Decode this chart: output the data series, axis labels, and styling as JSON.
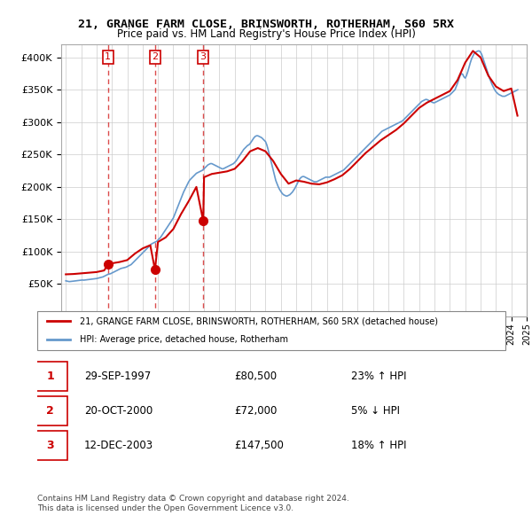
{
  "title": "21, GRANGE FARM CLOSE, BRINSWORTH, ROTHERHAM, S60 5RX",
  "subtitle": "Price paid vs. HM Land Registry's House Price Index (HPI)",
  "property_label": "21, GRANGE FARM CLOSE, BRINSWORTH, ROTHERHAM, S60 5RX (detached house)",
  "hpi_label": "HPI: Average price, detached house, Rotherham",
  "footnote1": "Contains HM Land Registry data © Crown copyright and database right 2024.",
  "footnote2": "This data is licensed under the Open Government Licence v3.0.",
  "sales": [
    {
      "num": 1,
      "date": "29-SEP-1997",
      "price": 80500,
      "pct": "23%",
      "dir": "↑"
    },
    {
      "num": 2,
      "date": "20-OCT-2000",
      "price": 72000,
      "pct": "5%",
      "dir": "↓"
    },
    {
      "num": 3,
      "date": "12-DEC-2003",
      "price": 147500,
      "pct": "18%",
      "dir": "↑"
    }
  ],
  "sale_dates_decimal": [
    1997.747,
    2000.804,
    2003.945
  ],
  "red_color": "#cc0000",
  "blue_color": "#6699cc",
  "background": "#ffffff",
  "grid_color": "#cccccc",
  "ylim": [
    0,
    420000
  ],
  "yticks": [
    0,
    50000,
    100000,
    150000,
    200000,
    250000,
    300000,
    350000,
    400000
  ],
  "hpi_data": {
    "dates": [
      1995.0,
      1995.083,
      1995.167,
      1995.25,
      1995.333,
      1995.417,
      1995.5,
      1995.583,
      1995.667,
      1995.75,
      1995.833,
      1995.917,
      1996.0,
      1996.083,
      1996.167,
      1996.25,
      1996.333,
      1996.417,
      1996.5,
      1996.583,
      1996.667,
      1996.75,
      1996.833,
      1996.917,
      1997.0,
      1997.083,
      1997.167,
      1997.25,
      1997.333,
      1997.417,
      1997.5,
      1997.583,
      1997.667,
      1997.75,
      1997.833,
      1997.917,
      1998.0,
      1998.083,
      1998.167,
      1998.25,
      1998.333,
      1998.417,
      1998.5,
      1998.583,
      1998.667,
      1998.75,
      1998.833,
      1998.917,
      1999.0,
      1999.083,
      1999.167,
      1999.25,
      1999.333,
      1999.417,
      1999.5,
      1999.583,
      1999.667,
      1999.75,
      1999.833,
      1999.917,
      2000.0,
      2000.083,
      2000.167,
      2000.25,
      2000.333,
      2000.417,
      2000.5,
      2000.583,
      2000.667,
      2000.75,
      2000.833,
      2000.917,
      2001.0,
      2001.083,
      2001.167,
      2001.25,
      2001.333,
      2001.417,
      2001.5,
      2001.583,
      2001.667,
      2001.75,
      2001.833,
      2001.917,
      2002.0,
      2002.083,
      2002.167,
      2002.25,
      2002.333,
      2002.417,
      2002.5,
      2002.583,
      2002.667,
      2002.75,
      2002.833,
      2002.917,
      2003.0,
      2003.083,
      2003.167,
      2003.25,
      2003.333,
      2003.417,
      2003.5,
      2003.583,
      2003.667,
      2003.75,
      2003.833,
      2003.917,
      2004.0,
      2004.083,
      2004.167,
      2004.25,
      2004.333,
      2004.417,
      2004.5,
      2004.583,
      2004.667,
      2004.75,
      2004.833,
      2004.917,
      2005.0,
      2005.083,
      2005.167,
      2005.25,
      2005.333,
      2005.417,
      2005.5,
      2005.583,
      2005.667,
      2005.75,
      2005.833,
      2005.917,
      2006.0,
      2006.083,
      2006.167,
      2006.25,
      2006.333,
      2006.417,
      2006.5,
      2006.583,
      2006.667,
      2006.75,
      2006.833,
      2006.917,
      2007.0,
      2007.083,
      2007.167,
      2007.25,
      2007.333,
      2007.417,
      2007.5,
      2007.583,
      2007.667,
      2007.75,
      2007.833,
      2007.917,
      2008.0,
      2008.083,
      2008.167,
      2008.25,
      2008.333,
      2008.417,
      2008.5,
      2008.583,
      2008.667,
      2008.75,
      2008.833,
      2008.917,
      2009.0,
      2009.083,
      2009.167,
      2009.25,
      2009.333,
      2009.417,
      2009.5,
      2009.583,
      2009.667,
      2009.75,
      2009.833,
      2009.917,
      2010.0,
      2010.083,
      2010.167,
      2010.25,
      2010.333,
      2010.417,
      2010.5,
      2010.583,
      2010.667,
      2010.75,
      2010.833,
      2010.917,
      2011.0,
      2011.083,
      2011.167,
      2011.25,
      2011.333,
      2011.417,
      2011.5,
      2011.583,
      2011.667,
      2011.75,
      2011.833,
      2011.917,
      2012.0,
      2012.083,
      2012.167,
      2012.25,
      2012.333,
      2012.417,
      2012.5,
      2012.583,
      2012.667,
      2012.75,
      2012.833,
      2012.917,
      2013.0,
      2013.083,
      2013.167,
      2013.25,
      2013.333,
      2013.417,
      2013.5,
      2013.583,
      2013.667,
      2013.75,
      2013.833,
      2013.917,
      2014.0,
      2014.083,
      2014.167,
      2014.25,
      2014.333,
      2014.417,
      2014.5,
      2014.583,
      2014.667,
      2014.75,
      2014.833,
      2014.917,
      2015.0,
      2015.083,
      2015.167,
      2015.25,
      2015.333,
      2015.417,
      2015.5,
      2015.583,
      2015.667,
      2015.75,
      2015.833,
      2015.917,
      2016.0,
      2016.083,
      2016.167,
      2016.25,
      2016.333,
      2016.417,
      2016.5,
      2016.583,
      2016.667,
      2016.75,
      2016.833,
      2016.917,
      2017.0,
      2017.083,
      2017.167,
      2017.25,
      2017.333,
      2017.417,
      2017.5,
      2017.583,
      2017.667,
      2017.75,
      2017.833,
      2017.917,
      2018.0,
      2018.083,
      2018.167,
      2018.25,
      2018.333,
      2018.417,
      2018.5,
      2018.583,
      2018.667,
      2018.75,
      2018.833,
      2018.917,
      2019.0,
      2019.083,
      2019.167,
      2019.25,
      2019.333,
      2019.417,
      2019.5,
      2019.583,
      2019.667,
      2019.75,
      2019.833,
      2019.917,
      2020.0,
      2020.083,
      2020.167,
      2020.25,
      2020.333,
      2020.417,
      2020.5,
      2020.583,
      2020.667,
      2020.75,
      2020.833,
      2020.917,
      2021.0,
      2021.083,
      2021.167,
      2021.25,
      2021.333,
      2021.417,
      2021.5,
      2021.583,
      2021.667,
      2021.75,
      2021.833,
      2021.917,
      2022.0,
      2022.083,
      2022.167,
      2022.25,
      2022.333,
      2022.417,
      2022.5,
      2022.583,
      2022.667,
      2022.75,
      2022.833,
      2022.917,
      2023.0,
      2023.083,
      2023.167,
      2023.25,
      2023.333,
      2023.417,
      2023.5,
      2023.583,
      2023.667,
      2023.75,
      2023.833,
      2023.917,
      2024.0,
      2024.083,
      2024.167,
      2024.25,
      2024.333,
      2024.417
    ],
    "values": [
      55000,
      54500,
      54000,
      53800,
      54000,
      54200,
      54500,
      54800,
      55000,
      55200,
      55500,
      55800,
      56000,
      56200,
      56000,
      56200,
      56500,
      56800,
      57000,
      57200,
      57500,
      57800,
      58000,
      58200,
      58500,
      59000,
      59500,
      60000,
      60500,
      61000,
      62000,
      63000,
      64000,
      65000,
      65500,
      66000,
      67000,
      68000,
      69000,
      70000,
      71000,
      72000,
      73000,
      74000,
      74500,
      75000,
      75500,
      76000,
      77000,
      78000,
      79000,
      80000,
      82000,
      84000,
      86000,
      88000,
      90000,
      92000,
      94000,
      96000,
      98000,
      100000,
      102000,
      104000,
      106000,
      108000,
      110000,
      112000,
      113000,
      114000,
      115000,
      116000,
      118000,
      120000,
      122000,
      125000,
      128000,
      131000,
      134000,
      137000,
      140000,
      143000,
      146000,
      149000,
      152000,
      157000,
      162000,
      167000,
      172000,
      177000,
      182000,
      187000,
      192000,
      196000,
      200000,
      204000,
      208000,
      211000,
      213000,
      215000,
      217000,
      219000,
      221000,
      222000,
      223000,
      224000,
      225000,
      226000,
      228000,
      230000,
      232000,
      234000,
      235000,
      236000,
      236000,
      235000,
      234000,
      233000,
      232000,
      231000,
      230000,
      229000,
      228000,
      228000,
      229000,
      230000,
      231000,
      232000,
      233000,
      234000,
      235000,
      236000,
      238000,
      240000,
      243000,
      246000,
      249000,
      252000,
      255000,
      258000,
      260000,
      262000,
      264000,
      265000,
      267000,
      270000,
      273000,
      276000,
      278000,
      279000,
      279000,
      278000,
      277000,
      276000,
      274000,
      272000,
      270000,
      265000,
      258000,
      250000,
      242000,
      234000,
      226000,
      218000,
      210000,
      205000,
      200000,
      196000,
      193000,
      190000,
      188000,
      187000,
      186000,
      186000,
      187000,
      188000,
      190000,
      192000,
      195000,
      198000,
      202000,
      206000,
      210000,
      213000,
      215000,
      216000,
      216000,
      215000,
      214000,
      213000,
      212000,
      211000,
      210000,
      209000,
      208000,
      208000,
      208000,
      209000,
      210000,
      211000,
      212000,
      213000,
      214000,
      215000,
      215000,
      215000,
      215000,
      216000,
      217000,
      218000,
      219000,
      220000,
      221000,
      222000,
      223000,
      224000,
      225000,
      226000,
      228000,
      230000,
      232000,
      234000,
      236000,
      238000,
      240000,
      242000,
      244000,
      246000,
      248000,
      250000,
      252000,
      254000,
      256000,
      258000,
      260000,
      262000,
      264000,
      266000,
      268000,
      270000,
      272000,
      274000,
      276000,
      278000,
      280000,
      282000,
      284000,
      286000,
      287000,
      288000,
      289000,
      290000,
      291000,
      292000,
      293000,
      294000,
      295000,
      296000,
      297000,
      298000,
      299000,
      300000,
      301000,
      302000,
      304000,
      306000,
      308000,
      310000,
      312000,
      314000,
      316000,
      318000,
      320000,
      322000,
      324000,
      326000,
      328000,
      330000,
      332000,
      333000,
      334000,
      335000,
      335000,
      334000,
      333000,
      332000,
      331000,
      330000,
      330000,
      331000,
      332000,
      333000,
      334000,
      335000,
      336000,
      337000,
      338000,
      339000,
      340000,
      341000,
      342000,
      344000,
      346000,
      348000,
      350000,
      355000,
      360000,
      366000,
      372000,
      375000,
      374000,
      370000,
      368000,
      372000,
      378000,
      385000,
      392000,
      398000,
      402000,
      406000,
      408000,
      409000,
      410000,
      410000,
      408000,
      404000,
      398000,
      392000,
      386000,
      380000,
      374000,
      368000,
      363000,
      358000,
      354000,
      350000,
      347000,
      345000,
      343000,
      342000,
      341000,
      340000,
      340000,
      340000,
      341000,
      342000,
      343000,
      344000,
      345000,
      346000,
      347000,
      348000,
      349000,
      350000
    ]
  },
  "property_data": {
    "dates": [
      1995.0,
      1995.5,
      1996.0,
      1996.5,
      1997.0,
      1997.5,
      1997.747,
      1998.0,
      1998.5,
      1999.0,
      1999.5,
      2000.0,
      2000.5,
      2000.804,
      2001.0,
      2001.5,
      2002.0,
      2002.5,
      2003.0,
      2003.5,
      2003.945,
      2004.0,
      2004.5,
      2005.0,
      2005.5,
      2006.0,
      2006.5,
      2007.0,
      2007.5,
      2008.0,
      2008.5,
      2009.0,
      2009.5,
      2010.0,
      2010.5,
      2011.0,
      2011.5,
      2012.0,
      2012.5,
      2013.0,
      2013.5,
      2014.0,
      2014.5,
      2015.0,
      2015.5,
      2016.0,
      2016.5,
      2017.0,
      2017.5,
      2018.0,
      2018.5,
      2019.0,
      2019.5,
      2020.0,
      2020.5,
      2021.0,
      2021.5,
      2022.0,
      2022.5,
      2023.0,
      2023.5,
      2024.0,
      2024.4
    ],
    "values": [
      65000,
      65500,
      66500,
      67500,
      68500,
      71000,
      80500,
      82000,
      84000,
      87000,
      97000,
      105000,
      110000,
      72000,
      115000,
      122000,
      135000,
      158000,
      178000,
      200000,
      147500,
      215000,
      220000,
      222000,
      224000,
      228000,
      240000,
      255000,
      260000,
      255000,
      240000,
      220000,
      205000,
      210000,
      208000,
      205000,
      204000,
      207000,
      212000,
      218000,
      228000,
      240000,
      252000,
      262000,
      272000,
      280000,
      288000,
      298000,
      310000,
      322000,
      330000,
      336000,
      342000,
      348000,
      365000,
      392000,
      410000,
      400000,
      372000,
      355000,
      348000,
      352000,
      310000
    ]
  }
}
